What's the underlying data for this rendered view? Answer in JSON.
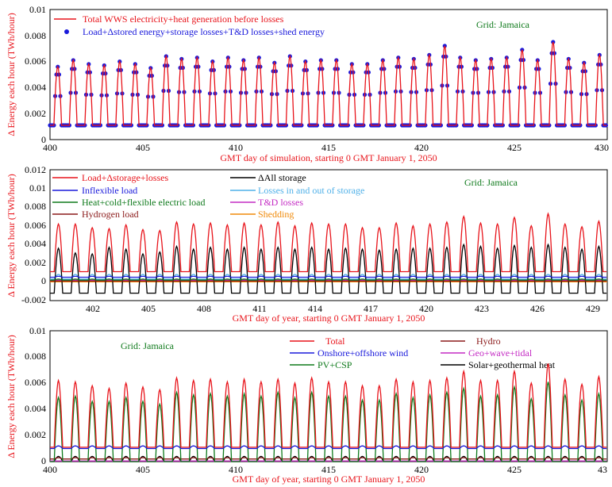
{
  "chart_data": [
    {
      "type": "line",
      "grid_label": "Grid: Jamaica",
      "xlabel": "GMT day of simulation, starting 0 GMT January 1, 2050",
      "ylabel": "Δ Energy each hour (TWh/hour)",
      "xlim": [
        400,
        430
      ],
      "ylim": [
        0,
        0.01
      ],
      "xticks": [
        "400",
        "405",
        "410",
        "415",
        "420",
        "425",
        "430"
      ],
      "yticks": [
        "0",
        "0.002",
        "0.004",
        "0.006",
        "0.008",
        "0.01"
      ],
      "grid": false,
      "legend_position": "top-left",
      "series": [
        {
          "name": "Total WWS electricity+heat generation before losses",
          "color": "#e8141b",
          "style": "line",
          "peaks": [
            0.0056,
            0.0061,
            0.0058,
            0.0057,
            0.006,
            0.0058,
            0.0055,
            0.0064,
            0.0062,
            0.0063,
            0.006,
            0.0063,
            0.0061,
            0.0063,
            0.0059,
            0.0064,
            0.006,
            0.0061,
            0.0061,
            0.0058,
            0.0058,
            0.0061,
            0.0063,
            0.0062,
            0.0065,
            0.0072,
            0.0063,
            0.0061,
            0.0062,
            0.0063,
            0.0069,
            0.0061,
            0.0075,
            0.0062,
            0.0059,
            0.0065
          ],
          "base": 0.0011
        },
        {
          "name": "Load+Δstored energy+storage losses+T&D losses+shed energy",
          "color": "#1a1adb",
          "style": "markers",
          "peaks": [
            0.0056,
            0.0061,
            0.0058,
            0.0057,
            0.006,
            0.0058,
            0.0055,
            0.0064,
            0.0062,
            0.0063,
            0.006,
            0.0063,
            0.0061,
            0.0063,
            0.0059,
            0.0064,
            0.006,
            0.0061,
            0.0061,
            0.0058,
            0.0058,
            0.0061,
            0.0063,
            0.0062,
            0.0065,
            0.0072,
            0.0063,
            0.0061,
            0.0062,
            0.0063,
            0.0069,
            0.0061,
            0.0075,
            0.0062,
            0.0059,
            0.0065
          ],
          "base": 0.0011
        }
      ]
    },
    {
      "type": "line",
      "grid_label": "Grid: Jamaica",
      "xlabel": "GMT day of year, starting 0 GMT January 1, 2050",
      "ylabel": "Δ Energy each hour (TWh/hour)",
      "xlim": [
        400,
        430
      ],
      "ylim": [
        -0.002,
        0.012
      ],
      "xticks": [
        "402",
        "405",
        "408",
        "411",
        "414",
        "417",
        "420",
        "423",
        "426",
        "429"
      ],
      "yticks": [
        "-0.002",
        "0",
        "0.002",
        "0.004",
        "0.006",
        "0.008",
        "0.01",
        "0.012"
      ],
      "grid": false,
      "legend_position": "top-left",
      "series": [
        {
          "name": "Load+Δstorage+losses",
          "color": "#e8141b",
          "peaks": [
            0.0062,
            0.0062,
            0.0058,
            0.0057,
            0.0061,
            0.0056,
            0.0055,
            0.0064,
            0.0062,
            0.0063,
            0.0061,
            0.0063,
            0.0061,
            0.0064,
            0.006,
            0.0063,
            0.0062,
            0.0062,
            0.0058,
            0.0058,
            0.0063,
            0.006,
            0.0062,
            0.0064,
            0.007,
            0.0063,
            0.0062,
            0.0069,
            0.006,
            0.0073,
            0.0062,
            0.0059,
            0.0065
          ],
          "base": 0.0011
        },
        {
          "name": "Inflexible load",
          "color": "#1a1adb",
          "peaks": [
            0.0006
          ],
          "base": 0.0005
        },
        {
          "name": "Heat+cold+flexible electric load",
          "color": "#0f7a1c",
          "peaks": [
            0.0003
          ],
          "base": 0.0002
        },
        {
          "name": "Hydrogen load",
          "color": "#8b1a1a",
          "peaks": [
            0.0001
          ],
          "base": 0.0001
        },
        {
          "name": "ΔAll storage",
          "color": "#000000",
          "peaks": [
            0.0036,
            0.0031,
            0.003,
            0.0037,
            0.0035,
            0.003,
            0.0032,
            0.0038,
            0.0035,
            0.0037,
            0.0035,
            0.0037,
            0.0035,
            0.0037,
            0.0035,
            0.0037,
            0.0035,
            0.0036,
            0.0035,
            0.0034,
            0.0035,
            0.0036,
            0.0036,
            0.0037,
            0.004,
            0.0038,
            0.0036,
            0.0039,
            0.0037,
            0.004,
            0.0037,
            0.0035,
            0.0038
          ],
          "base": -0.0012
        },
        {
          "name": "Losses in and out of storage",
          "color": "#4fb0e8",
          "peaks": [
            0.0008
          ],
          "base": 0.0003
        },
        {
          "name": "T&D losses",
          "color": "#c42bc4",
          "peaks": [
            0.0002
          ],
          "base": 0.0001
        },
        {
          "name": "Shedding",
          "color": "#f08a0a",
          "peaks": [
            0.0
          ],
          "base": 0.0
        }
      ]
    },
    {
      "type": "line",
      "grid_label": "Grid: Jamaica",
      "xlabel": "GMT day of year, starting 0 GMT January 1, 2050",
      "ylabel": "Δ Energy each hour (TWh/hour)",
      "xlim": [
        400,
        430
      ],
      "ylim": [
        0,
        0.01
      ],
      "xticks": [
        "400",
        "405",
        "410",
        "415",
        "420",
        "425",
        "43"
      ],
      "yticks": [
        "0",
        "0.002",
        "0.004",
        "0.006",
        "0.008",
        "0.01"
      ],
      "grid": false,
      "legend_position": "top-right",
      "series": [
        {
          "name": "Total",
          "color": "#e8141b",
          "peaks": [
            0.0062,
            0.0061,
            0.0058,
            0.0056,
            0.006,
            0.0057,
            0.0055,
            0.0064,
            0.0062,
            0.0063,
            0.0061,
            0.0063,
            0.0061,
            0.0063,
            0.006,
            0.0064,
            0.0061,
            0.0061,
            0.0058,
            0.0058,
            0.0063,
            0.0061,
            0.0062,
            0.0064,
            0.0069,
            0.0062,
            0.0062,
            0.0069,
            0.006,
            0.0075,
            0.0063,
            0.0059,
            0.0065
          ],
          "base": 0.0011
        },
        {
          "name": "Onshore+offshore wind",
          "color": "#1a1adb",
          "peaks": [
            0.0012
          ],
          "base": 0.001
        },
        {
          "name": "PV+CSP",
          "color": "#0f7a1c",
          "peaks": [
            0.0049,
            0.005,
            0.0046,
            0.0046,
            0.0049,
            0.0046,
            0.0044,
            0.0053,
            0.0051,
            0.0052,
            0.005,
            0.0052,
            0.005,
            0.0053,
            0.0049,
            0.0053,
            0.005,
            0.005,
            0.0047,
            0.0047,
            0.0052,
            0.0049,
            0.0051,
            0.0053,
            0.0056,
            0.005,
            0.0051,
            0.0057,
            0.0048,
            0.0061,
            0.0051,
            0.0047,
            0.0052
          ],
          "base": 0.0
        },
        {
          "name": "Hydro",
          "color": "#8b1a1a",
          "peaks": [
            0.0003
          ],
          "base": 0.0002
        },
        {
          "name": "Geo+wave+tidal",
          "color": "#c42bc4",
          "peaks": [
            5e-05
          ],
          "base": 5e-05
        },
        {
          "name": "Solar+geothermal heat",
          "color": "#000000",
          "peaks": [
            0.0004
          ],
          "base": 0.0
        }
      ]
    }
  ]
}
